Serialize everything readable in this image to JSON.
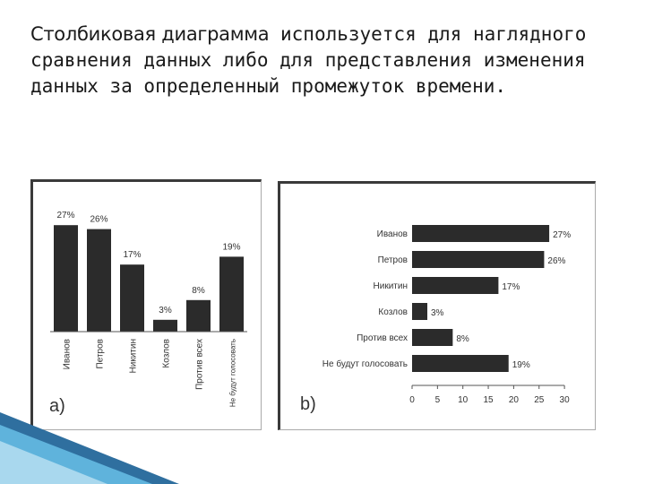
{
  "heading": {
    "term": "Столбиковая диаграмма",
    "rest": " используется для наглядного сравнения данных либо для представления изменения данных за определенный промежуток времени."
  },
  "colors": {
    "bar": "#2b2b2b",
    "text": "#333333",
    "accent": "#4aa3d6"
  },
  "chart_data": [
    {
      "type": "bar",
      "orientation": "vertical",
      "panel_label": "a)",
      "categories": [
        "Иванов",
        "Петров",
        "Никитин",
        "Козлов",
        "Против всех",
        "Не будут голосовать"
      ],
      "values": [
        27,
        26,
        17,
        3,
        8,
        19
      ],
      "data_labels": [
        "27%",
        "26%",
        "17%",
        "3%",
        "8%",
        "19%"
      ],
      "ylim": [
        0,
        30
      ],
      "grid": false
    },
    {
      "type": "bar",
      "orientation": "horizontal",
      "panel_label": "b)",
      "categories": [
        "Иванов",
        "Петров",
        "Никитин",
        "Козлов",
        "Против всех",
        "Не будут голосовать"
      ],
      "values": [
        27,
        26,
        17,
        3,
        8,
        19
      ],
      "data_labels": [
        "27%",
        "26%",
        "17%",
        "3%",
        "8%",
        "19%"
      ],
      "xlim": [
        0,
        30
      ],
      "xticks": [
        "0",
        "5",
        "10",
        "15",
        "20",
        "25",
        "30"
      ],
      "grid": false
    }
  ]
}
